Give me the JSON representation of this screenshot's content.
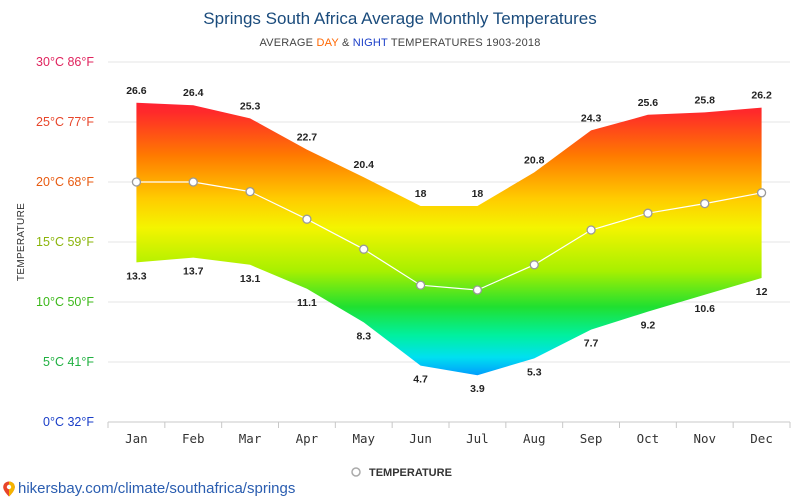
{
  "chart_data": {
    "type": "area",
    "title": "Springs South Africa Average Monthly Temperatures",
    "subtitle": {
      "prefix": "AVERAGE ",
      "day": "DAY",
      "amp": " & ",
      "night": "NIGHT",
      "suffix": " TEMPERATURES 1903-2018"
    },
    "ylabel": "TEMPERATURE",
    "ylim": [
      0,
      30
    ],
    "yticks": [
      {
        "value": 30,
        "label": "30°C 86°F",
        "color": "#e0245e"
      },
      {
        "value": 25,
        "label": "25°C 77°F",
        "color": "#e8452a"
      },
      {
        "value": 20,
        "label": "20°C 68°F",
        "color": "#e85a10"
      },
      {
        "value": 15,
        "label": "15°C 59°F",
        "color": "#8ab40a"
      },
      {
        "value": 10,
        "label": "10°C 50°F",
        "color": "#3cb81a"
      },
      {
        "value": 5,
        "label": "5°C 41°F",
        "color": "#20b040"
      },
      {
        "value": 0,
        "label": "0°C 32°F",
        "color": "#1a3ec8"
      }
    ],
    "categories": [
      "Jan",
      "Feb",
      "Mar",
      "Apr",
      "May",
      "Jun",
      "Jul",
      "Aug",
      "Sep",
      "Oct",
      "Nov",
      "Dec"
    ],
    "series": [
      {
        "name": "DAY",
        "values": [
          26.6,
          26.4,
          25.3,
          22.7,
          20.4,
          18,
          18,
          20.8,
          24.3,
          25.6,
          25.8,
          26.2
        ]
      },
      {
        "name": "NIGHT",
        "values": [
          13.3,
          13.7,
          13.1,
          11.1,
          8.3,
          4.7,
          3.9,
          5.3,
          7.7,
          9.2,
          10.6,
          12
        ]
      },
      {
        "name": "TEMPERATURE",
        "values": [
          20,
          20,
          19.2,
          16.9,
          14.4,
          11.4,
          11,
          13.1,
          16,
          17.4,
          18.2,
          19.1
        ]
      }
    ],
    "legend": {
      "label": "TEMPERATURE",
      "position": "bottom-center"
    },
    "grid": true
  },
  "colors": {
    "day": "#ff6600",
    "night": "#1a3ec8",
    "title": "#1a4b7c"
  },
  "footer": {
    "text": "hikersbay.com/climate/southafrica/springs",
    "icon": "map-pin-icon"
  }
}
